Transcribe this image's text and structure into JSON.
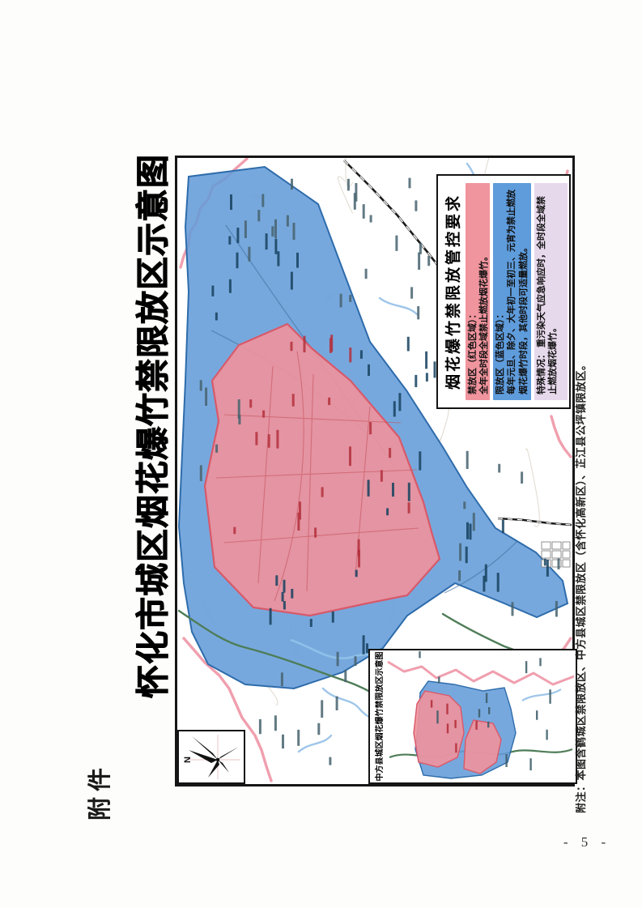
{
  "page": {
    "attachment_label": "附件",
    "page_number": "- 5 -"
  },
  "map": {
    "title": "怀化市城区烟花爆竹禁限放区示意图",
    "compass_label": "N",
    "footnote": "附注：本图含鹤城区禁限放区、中方县城区禁限放区（含怀化高新区）、芷江县公坪镇限放区。",
    "inset": {
      "title": "中方县城区烟花爆竹禁限放区示意图"
    },
    "zones": {
      "forbidden_color": "#ee939c",
      "restricted_color": "#649cd8",
      "forbidden_stroke": "#d45b6b",
      "restricted_stroke": "#2e6cab"
    }
  },
  "legend": {
    "title": "烟花爆竹禁限放管控要求",
    "items": [
      {
        "name": "forbidden-zone",
        "color": "#f0949d",
        "heading": "禁放区（红色区域）：",
        "body": "全年全时段全域禁止燃放烟花爆竹。"
      },
      {
        "name": "restricted-zone",
        "color": "#5f9cdc",
        "heading": "限放区（蓝色区域）：",
        "body": "每年元旦、除夕、大年初一至初三、元宵为禁止燃放烟花爆竹时段，其他时段可适量燃放。"
      },
      {
        "name": "special-case",
        "color": "#e7d9ec",
        "heading": "特殊情况：",
        "body": "重污染天气应急响应时，全时段全域禁止燃放烟花爆竹。"
      }
    ]
  }
}
